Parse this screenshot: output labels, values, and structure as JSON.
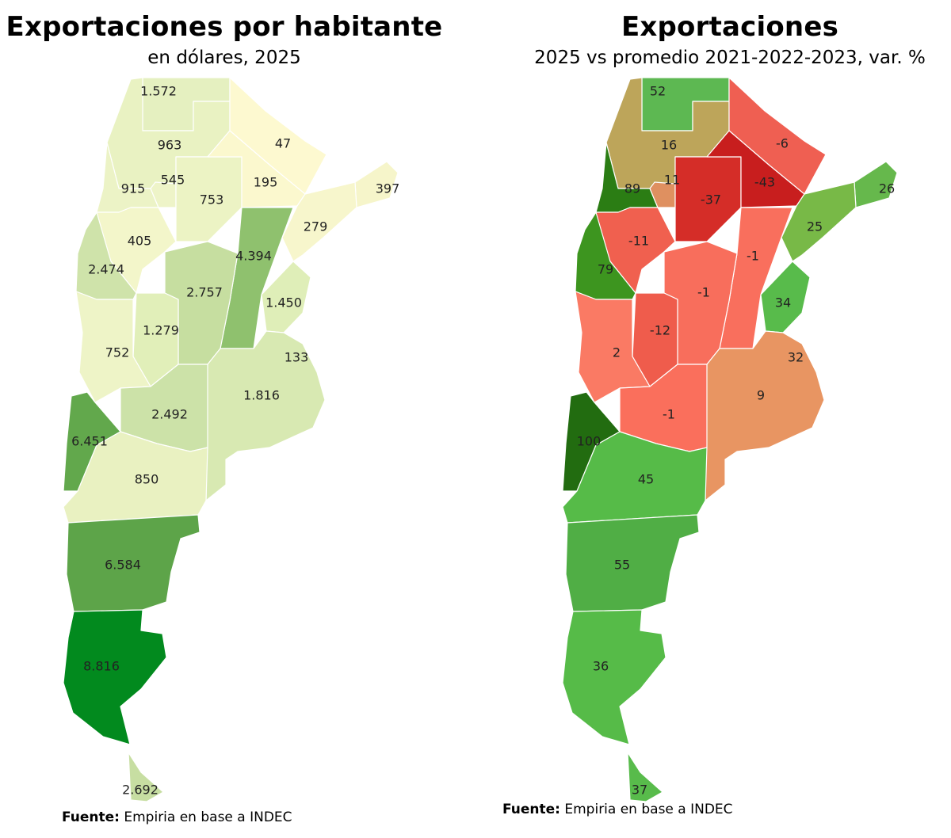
{
  "left_panel": {
    "title": "Exportaciones por habitante",
    "subtitle": "en dólares, 2025",
    "source_label": "Fuente:",
    "source_text": "Empiria en base a INDEC",
    "provinces": [
      {
        "name": "Jujuy",
        "label": "1.572",
        "color": "#e5f0c0"
      },
      {
        "name": "Salta",
        "label": "963",
        "color": "#e9f2c2"
      },
      {
        "name": "Formosa",
        "label": "47",
        "color": "#fdf9d0"
      },
      {
        "name": "Misiones",
        "label": "397",
        "color": "#f6f5ca"
      },
      {
        "name": "Catamarca",
        "label": "915",
        "color": "#ecf3c6"
      },
      {
        "name": "Tucumán",
        "label": "545",
        "color": "#eef4c8"
      },
      {
        "name": "Santiago del Estero",
        "label": "753",
        "color": "#ecf3c4"
      },
      {
        "name": "Chaco",
        "label": "195",
        "color": "#fbf8ce"
      },
      {
        "name": "La Rioja",
        "label": "405",
        "color": "#f3f6ca"
      },
      {
        "name": "Corrientes",
        "label": "279",
        "color": "#f7f6cc"
      },
      {
        "name": "Santa Fe",
        "label": "4.394",
        "color": "#8fc16e"
      },
      {
        "name": "San Juan",
        "label": "2.474",
        "color": "#cfe3aa"
      },
      {
        "name": "Córdoba",
        "label": "2.757",
        "color": "#c6dea0"
      },
      {
        "name": "Entre Ríos",
        "label": "1.450",
        "color": "#dfeeb8"
      },
      {
        "name": "San Luis",
        "label": "1.279",
        "color": "#e1efb9"
      },
      {
        "name": "Mendoza",
        "label": "752",
        "color": "#eef4c7"
      },
      {
        "name": "CABA",
        "label": "133",
        "color": "#fbf8d0"
      },
      {
        "name": "Buenos Aires",
        "label": "1.816",
        "color": "#d8e9b2"
      },
      {
        "name": "La Pampa",
        "label": "2.492",
        "color": "#cce2a8"
      },
      {
        "name": "Neuquén",
        "label": "6.451",
        "color": "#62a84c"
      },
      {
        "name": "Río Negro",
        "label": "850",
        "color": "#e9f1c1"
      },
      {
        "name": "Chubut",
        "label": "6.584",
        "color": "#5da449"
      },
      {
        "name": "Santa Cruz",
        "label": "8.816",
        "color": "#028a1e"
      },
      {
        "name": "Tierra del Fuego",
        "label": "2.692",
        "color": "#c7dea2"
      }
    ]
  },
  "right_panel": {
    "title": "Exportaciones",
    "subtitle": "2025 vs promedio 2021-2022-2023, var. %",
    "source_label": "Fuente:",
    "source_text": "Empiria en base a INDEC",
    "provinces": [
      {
        "name": "Jujuy",
        "label": "52",
        "color": "#5db852"
      },
      {
        "name": "Salta",
        "label": "16",
        "color": "#bda55a"
      },
      {
        "name": "Formosa",
        "label": "-6",
        "color": "#ef5f52"
      },
      {
        "name": "Misiones",
        "label": "26",
        "color": "#66b84c"
      },
      {
        "name": "Catamarca",
        "label": "89",
        "color": "#2b7d14"
      },
      {
        "name": "Tucumán",
        "label": "11",
        "color": "#df9060"
      },
      {
        "name": "Santiago del Estero",
        "label": "-37",
        "color": "#d52d28"
      },
      {
        "name": "Chaco",
        "label": "-43",
        "color": "#c81e1e"
      },
      {
        "name": "La Rioja",
        "label": "-11",
        "color": "#f0604f"
      },
      {
        "name": "Corrientes",
        "label": "25",
        "color": "#78b947"
      },
      {
        "name": "Santa Fe",
        "label": "-1",
        "color": "#f96f5d"
      },
      {
        "name": "San Juan",
        "label": "79",
        "color": "#3d951f"
      },
      {
        "name": "Córdoba",
        "label": "-1",
        "color": "#f86e5c"
      },
      {
        "name": "Entre Ríos",
        "label": "34",
        "color": "#58bb4b"
      },
      {
        "name": "San Luis",
        "label": "-12",
        "color": "#ef5c4c"
      },
      {
        "name": "Mendoza",
        "label": "2",
        "color": "#fa7a64"
      },
      {
        "name": "CABA",
        "label": "32",
        "color": "#62b84f"
      },
      {
        "name": "Buenos Aires",
        "label": "9",
        "color": "#e89562"
      },
      {
        "name": "La Pampa",
        "label": "-1",
        "color": "#fa6f5c"
      },
      {
        "name": "Neuquén",
        "label": "100",
        "color": "#226c10"
      },
      {
        "name": "Río Negro",
        "label": "45",
        "color": "#56bb48"
      },
      {
        "name": "Chubut",
        "label": "55",
        "color": "#50ae45"
      },
      {
        "name": "Santa Cruz",
        "label": "36",
        "color": "#56bb48"
      },
      {
        "name": "Tierra del Fuego",
        "label": "37",
        "color": "#58bb4b"
      }
    ]
  }
}
